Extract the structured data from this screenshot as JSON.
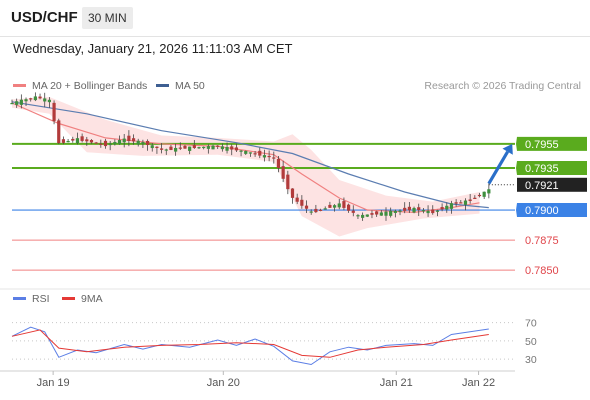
{
  "header": {
    "pair": "USD/CHF",
    "timeframe": "30 MIN",
    "datetime": "Wednesday, January 21, 2026 11:11:03 AM CET"
  },
  "legend": {
    "ma20": "MA 20 + Bollinger Bands",
    "ma50": "MA 50",
    "credit": "Research © 2026 Trading Central"
  },
  "rsi_legend": {
    "rsi": "RSI",
    "ma": "9MA"
  },
  "colors": {
    "ma20": "#f08080",
    "ma50": "#5b7db1",
    "bollinger_fill": "#fde3e3",
    "green_level": "#5aab1e",
    "blue_level": "#3b82e6",
    "red_level": "#f08080",
    "current_price": "#222222",
    "rsi_line": "#5b7ee5",
    "rsi_ma": "#e53935",
    "arrow": "#2a6fc9"
  },
  "chart_data": [
    {
      "type": "line",
      "title": "USD/CHF 30 MIN",
      "x_ticks": [
        "Jan 19",
        "Jan 20",
        "Jan 21",
        "Jan 22"
      ],
      "ylim": [
        0.7836,
        0.7994
      ],
      "price_path": [
        {
          "x": 0,
          "y": 0.7989
        },
        {
          "x": 2.5,
          "y": 0.7994
        },
        {
          "x": 4,
          "y": 0.7991
        },
        {
          "x": 5,
          "y": 0.7956
        },
        {
          "x": 7,
          "y": 0.7959
        },
        {
          "x": 10,
          "y": 0.7954
        },
        {
          "x": 12,
          "y": 0.7959
        },
        {
          "x": 14,
          "y": 0.7956
        },
        {
          "x": 16,
          "y": 0.795
        },
        {
          "x": 19,
          "y": 0.7952
        },
        {
          "x": 22,
          "y": 0.7953
        },
        {
          "x": 24,
          "y": 0.795
        },
        {
          "x": 26.5,
          "y": 0.7946
        },
        {
          "x": 28,
          "y": 0.7943
        },
        {
          "x": 30,
          "y": 0.791
        },
        {
          "x": 32,
          "y": 0.7898
        },
        {
          "x": 35,
          "y": 0.7905
        },
        {
          "x": 37,
          "y": 0.7895
        },
        {
          "x": 40,
          "y": 0.7898
        },
        {
          "x": 43,
          "y": 0.7901
        },
        {
          "x": 45,
          "y": 0.7898
        },
        {
          "x": 47,
          "y": 0.7905
        },
        {
          "x": 49,
          "y": 0.7908
        },
        {
          "x": 51,
          "y": 0.7917
        }
      ],
      "ma20_path": [
        {
          "x": 0,
          "y": 0.7989
        },
        {
          "x": 5,
          "y": 0.7972
        },
        {
          "x": 10,
          "y": 0.796
        },
        {
          "x": 16,
          "y": 0.7955
        },
        {
          "x": 22,
          "y": 0.7953
        },
        {
          "x": 28,
          "y": 0.7946
        },
        {
          "x": 31,
          "y": 0.793
        },
        {
          "x": 35,
          "y": 0.791
        },
        {
          "x": 38,
          "y": 0.79
        },
        {
          "x": 43,
          "y": 0.7898
        },
        {
          "x": 47,
          "y": 0.7902
        },
        {
          "x": 50,
          "y": 0.7906
        }
      ],
      "ma50_path": [
        {
          "x": 0,
          "y": 0.799
        },
        {
          "x": 8,
          "y": 0.798
        },
        {
          "x": 16,
          "y": 0.7966
        },
        {
          "x": 24,
          "y": 0.7956
        },
        {
          "x": 30,
          "y": 0.7947
        },
        {
          "x": 36,
          "y": 0.793
        },
        {
          "x": 42,
          "y": 0.7915
        },
        {
          "x": 47,
          "y": 0.7905
        },
        {
          "x": 51,
          "y": 0.7902
        }
      ],
      "bollinger_upper": [
        {
          "x": 0,
          "y": 0.7992
        },
        {
          "x": 4,
          "y": 0.7994
        },
        {
          "x": 10,
          "y": 0.7975
        },
        {
          "x": 16,
          "y": 0.7962
        },
        {
          "x": 22,
          "y": 0.796
        },
        {
          "x": 28,
          "y": 0.7957
        },
        {
          "x": 30,
          "y": 0.7963
        },
        {
          "x": 32,
          "y": 0.795
        },
        {
          "x": 35,
          "y": 0.7925
        },
        {
          "x": 40,
          "y": 0.7912
        },
        {
          "x": 45,
          "y": 0.7907
        },
        {
          "x": 50,
          "y": 0.7915
        }
      ],
      "bollinger_lower": [
        {
          "x": 0,
          "y": 0.7985
        },
        {
          "x": 4,
          "y": 0.798
        },
        {
          "x": 8,
          "y": 0.7948
        },
        {
          "x": 14,
          "y": 0.7945
        },
        {
          "x": 22,
          "y": 0.7946
        },
        {
          "x": 28,
          "y": 0.794
        },
        {
          "x": 31,
          "y": 0.7895
        },
        {
          "x": 35,
          "y": 0.7878
        },
        {
          "x": 38,
          "y": 0.7885
        },
        {
          "x": 44,
          "y": 0.7893
        },
        {
          "x": 50,
          "y": 0.7897
        }
      ],
      "levels": [
        {
          "value": 0.7955,
          "label": "0.7955",
          "style": "resistance-green"
        },
        {
          "value": 0.7935,
          "label": "0.7935",
          "style": "resistance-green"
        },
        {
          "value": 0.7921,
          "label": "0.7921",
          "style": "current-price"
        },
        {
          "value": 0.79,
          "label": "0.7900",
          "style": "pivot-blue"
        },
        {
          "value": 0.7875,
          "label": "0.7875",
          "style": "support-red"
        },
        {
          "value": 0.785,
          "label": "0.7850",
          "style": "support-red"
        }
      ],
      "arrow": {
        "from": {
          "x": 51,
          "y": 0.7922
        },
        "to": {
          "x": 53.5,
          "y": 0.7955
        }
      }
    },
    {
      "type": "line",
      "title": "RSI",
      "ylim": [
        18,
        85
      ],
      "y_ticks": [
        70,
        50,
        30
      ],
      "rsi": [
        {
          "x": 0,
          "y": 55
        },
        {
          "x": 2,
          "y": 65
        },
        {
          "x": 3.5,
          "y": 60
        },
        {
          "x": 5,
          "y": 32
        },
        {
          "x": 7,
          "y": 40
        },
        {
          "x": 9,
          "y": 37
        },
        {
          "x": 12,
          "y": 46
        },
        {
          "x": 14,
          "y": 41
        },
        {
          "x": 16,
          "y": 46
        },
        {
          "x": 19,
          "y": 43
        },
        {
          "x": 22,
          "y": 51
        },
        {
          "x": 24,
          "y": 45
        },
        {
          "x": 26,
          "y": 52
        },
        {
          "x": 28,
          "y": 44
        },
        {
          "x": 30,
          "y": 28
        },
        {
          "x": 32,
          "y": 24
        },
        {
          "x": 34,
          "y": 38
        },
        {
          "x": 36,
          "y": 43
        },
        {
          "x": 38,
          "y": 40
        },
        {
          "x": 40,
          "y": 45
        },
        {
          "x": 43,
          "y": 47
        },
        {
          "x": 45,
          "y": 45
        },
        {
          "x": 47,
          "y": 57
        },
        {
          "x": 49,
          "y": 60
        },
        {
          "x": 51,
          "y": 63
        }
      ],
      "rsi_ma": [
        {
          "x": 0,
          "y": 55
        },
        {
          "x": 3,
          "y": 62
        },
        {
          "x": 5,
          "y": 42
        },
        {
          "x": 8,
          "y": 38
        },
        {
          "x": 12,
          "y": 43
        },
        {
          "x": 16,
          "y": 45
        },
        {
          "x": 20,
          "y": 46
        },
        {
          "x": 24,
          "y": 48
        },
        {
          "x": 28,
          "y": 46
        },
        {
          "x": 31,
          "y": 34
        },
        {
          "x": 34,
          "y": 32
        },
        {
          "x": 37,
          "y": 40
        },
        {
          "x": 40,
          "y": 43
        },
        {
          "x": 44,
          "y": 46
        },
        {
          "x": 47,
          "y": 51
        },
        {
          "x": 51,
          "y": 57
        }
      ]
    }
  ]
}
